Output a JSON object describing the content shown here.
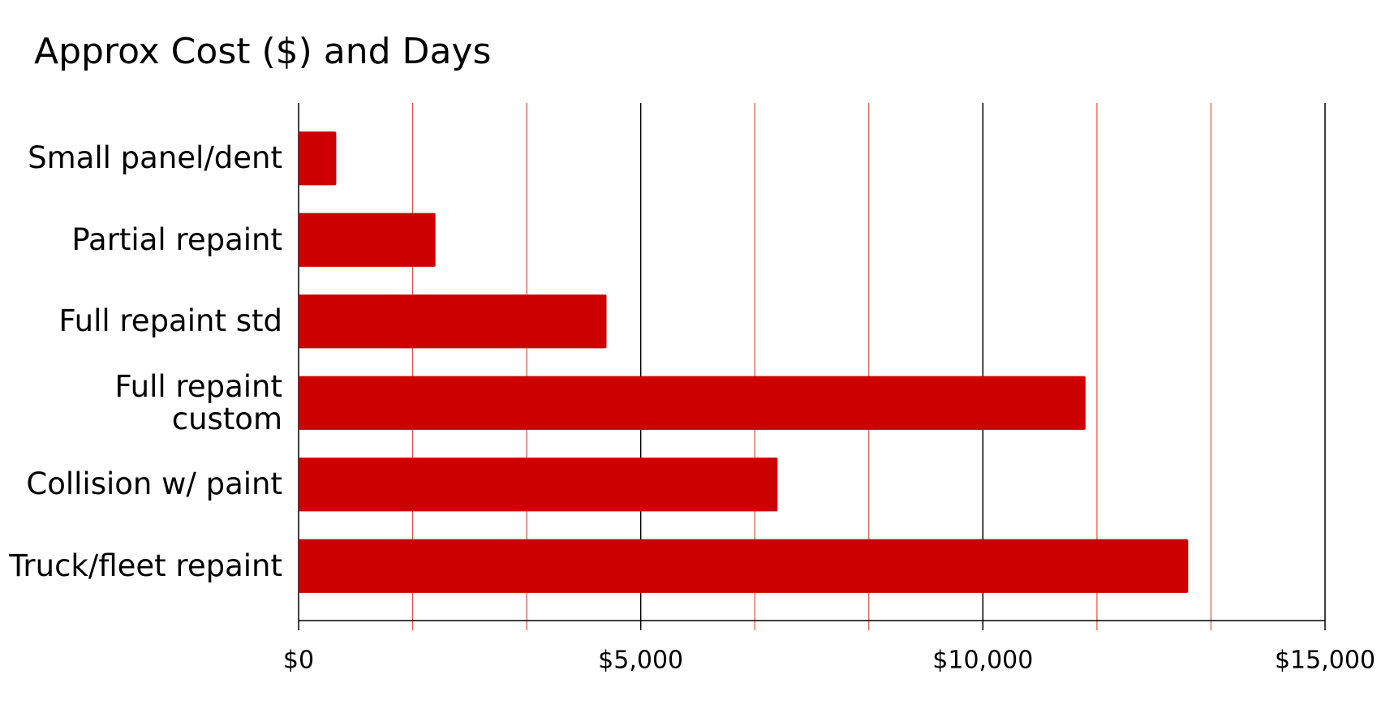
{
  "chart_data": {
    "type": "bar",
    "orientation": "horizontal",
    "title": "Approx Cost ($) and Days",
    "categories": [
      "Small panel/dent",
      "Partial repaint",
      "Full repaint std",
      "Full repaint\ncustom",
      "Collision w/ paint",
      "Truck/fleet repaint"
    ],
    "values": [
      550,
      2000,
      4500,
      11500,
      7000,
      13000
    ],
    "color": "#cc0000",
    "xlim": [
      0,
      15000
    ],
    "xticks": [
      {
        "value": 0,
        "label": "$0"
      },
      {
        "value": 5000,
        "label": "$5,000"
      },
      {
        "value": 10000,
        "label": "$10,000"
      },
      {
        "value": 15000,
        "label": "$15,000"
      }
    ],
    "minor_xticks": [
      1666.67,
      3333.33,
      6666.67,
      8333.33,
      11666.67,
      13333.33
    ],
    "grid": true,
    "grid_color": "#000000",
    "minor_grid_color": "#e0503c"
  }
}
